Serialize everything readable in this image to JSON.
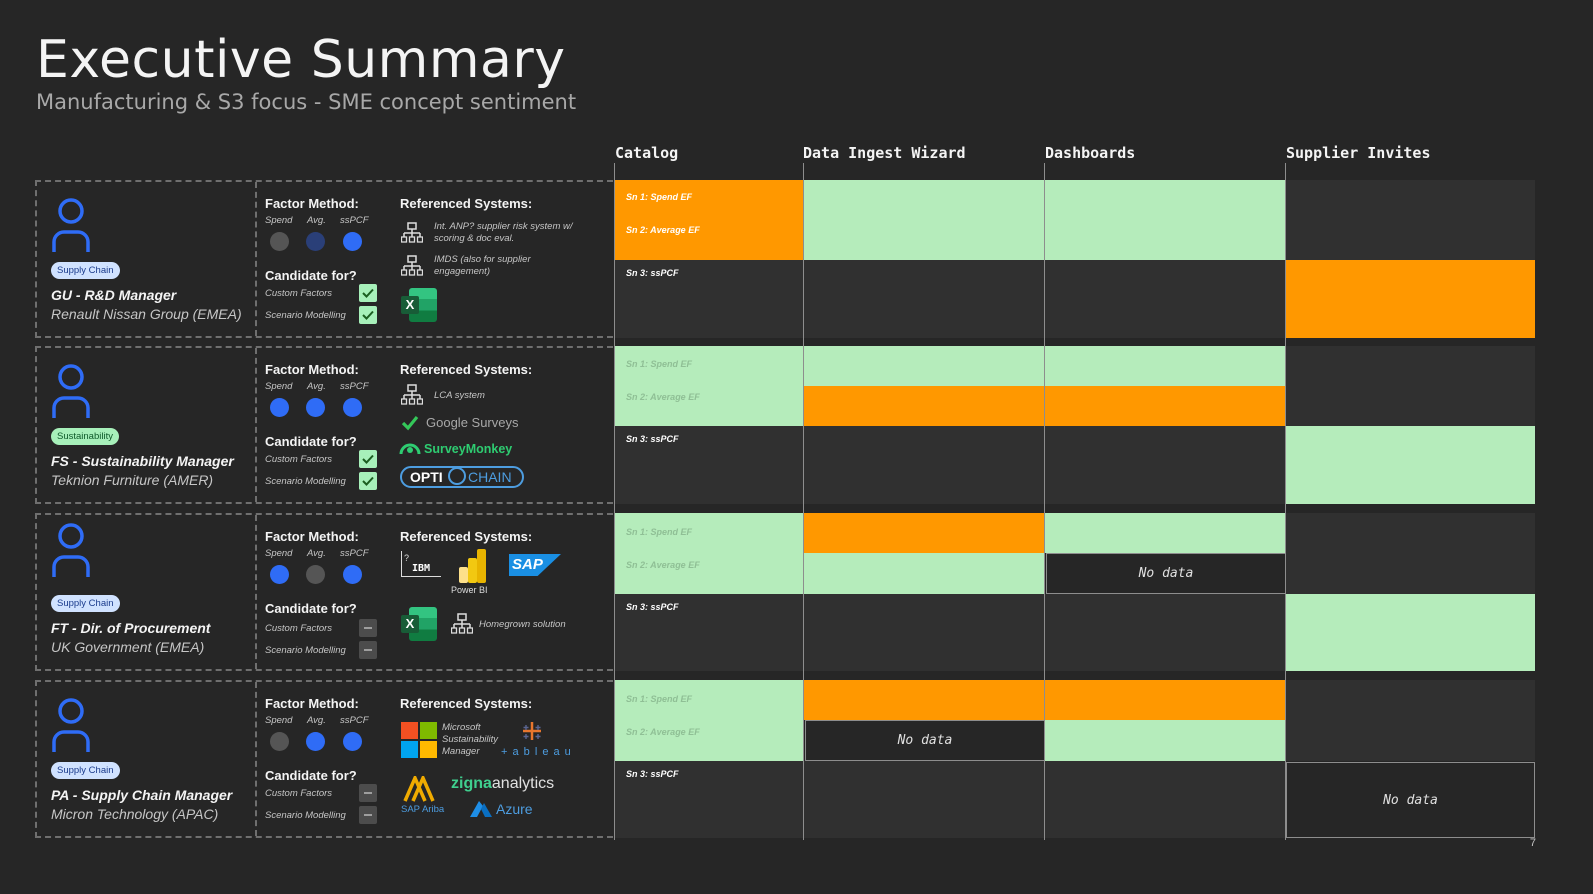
{
  "title": "Executive Summary",
  "subtitle": "Manufacturing & S3 focus - SME concept sentiment",
  "columns": [
    "Catalog",
    "Data Ingest Wizard",
    "Dashboards",
    "Supplier Invites"
  ],
  "labels": {
    "factor_method": "Factor Method:",
    "spend": "Spend",
    "avg": "Avg.",
    "sspcf": "ssPCF",
    "candidate": "Candidate for?",
    "custom_factors": "Custom Factors",
    "scenario_modelling": "Scenario Modelling",
    "referenced_systems": "Referenced Systems:",
    "sn1": "Sn 1: Spend EF",
    "sn2": "Sn 2: Average EF",
    "sn3": "Sn 3: ssPCF",
    "no_data": "No data"
  },
  "personas": [
    {
      "tag": "Supply Chain",
      "name": "GU - R&D Manager",
      "org": "Renault Nissan Group (EMEA)",
      "systems": {
        "sys1": "Int. ANP? supplier risk system w/ scoring & doc eval.",
        "sys2": "IMDS (also for supplier engagement)",
        "excel": "X"
      }
    },
    {
      "tag": "Sustainability",
      "name": "FS - Sustainability Manager",
      "org": "Teknion Furniture (AMER)",
      "systems": {
        "lca": "LCA system",
        "google": "Google Surveys",
        "surveymonkey": "SurveyMonkey",
        "opti": "OPTI",
        "chain": "CHAIN"
      }
    },
    {
      "tag": "Supply Chain",
      "name": "FT - Dir. of Procurement",
      "org": "UK Government (EMEA)",
      "systems": {
        "ibm": "IBM",
        "powerbi": "Power BI",
        "sap": "SAP",
        "excel": "X",
        "homegrown": "Homegrown solution"
      }
    },
    {
      "tag": "Supply Chain",
      "name": "PA - Supply Chain Manager",
      "org": "Micron Technology (APAC)",
      "systems": {
        "ms": "Microsoft Sustainability Manager",
        "tableau": "+ a b l e a u",
        "ariba": "SAP Ariba",
        "zigna": "zigna",
        "analytics": "analytics",
        "azure": "Azure"
      }
    }
  ],
  "page_number": "7",
  "colors": {
    "orange": "#ff9800",
    "green": "#b5ecbb",
    "blue": "#2f6cf6"
  }
}
